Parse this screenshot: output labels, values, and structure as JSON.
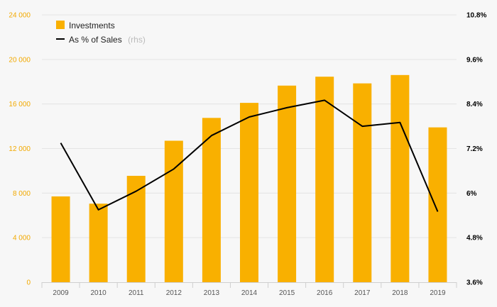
{
  "chart_data": {
    "type": "bar",
    "categories": [
      "2009",
      "2010",
      "2011",
      "2012",
      "2013",
      "2014",
      "2015",
      "2016",
      "2017",
      "2018",
      "2019"
    ],
    "series": [
      {
        "name": "Investments",
        "type": "bar",
        "axis": "left",
        "values": [
          7700,
          7050,
          9550,
          12700,
          14750,
          16100,
          17650,
          18450,
          17850,
          18600,
          13900
        ]
      },
      {
        "name": "As % of Sales",
        "type": "line",
        "axis": "right",
        "values": [
          7.35,
          5.55,
          6.05,
          6.65,
          7.55,
          8.05,
          8.3,
          8.5,
          7.8,
          7.9,
          5.5
        ]
      }
    ],
    "legend": {
      "items": [
        {
          "label": "Investments",
          "note": ""
        },
        {
          "label": "As % of Sales",
          "note": "(rhs)"
        }
      ],
      "position": "top-left"
    },
    "y_left": {
      "min": 0,
      "max": 24000,
      "ticks": [
        0,
        4000,
        8000,
        12000,
        16000,
        20000,
        24000
      ],
      "tick_labels": [
        "0",
        "4 000",
        "8 000",
        "12 000",
        "16 000",
        "20 000",
        "24 000"
      ]
    },
    "y_right": {
      "min": 3.6,
      "max": 10.8,
      "ticks": [
        3.6,
        4.8,
        6,
        7.2,
        8.4,
        9.6,
        10.8
      ],
      "tick_labels": [
        "3.6%",
        "4.8%",
        "6%",
        "7.2%",
        "8.4%",
        "9.6%",
        "10.8%"
      ]
    },
    "grid": true,
    "colors": {
      "bar": "#f9b000",
      "line": "#000000",
      "left_axis_text": "#f2a900",
      "grid": "#e4e4e4"
    }
  }
}
